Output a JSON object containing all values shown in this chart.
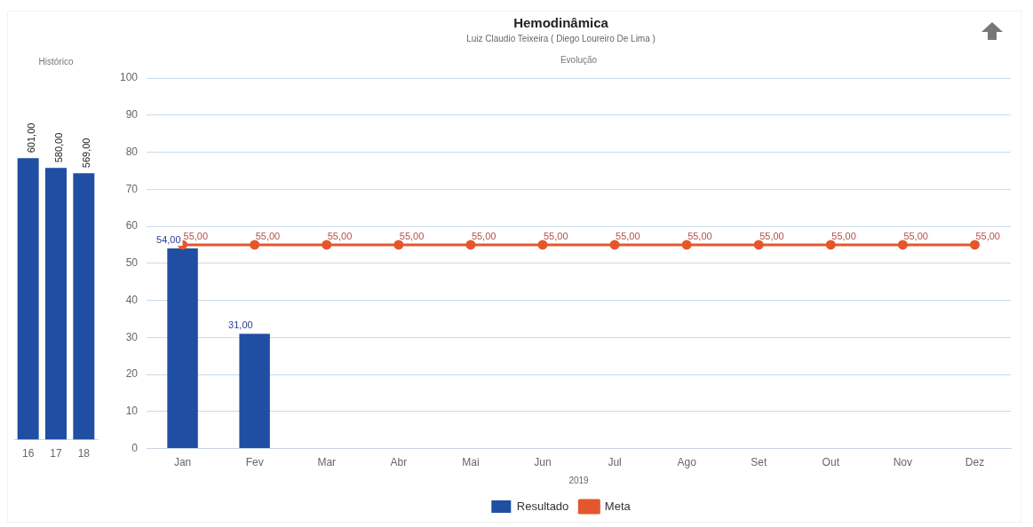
{
  "chart_data": [
    {
      "type": "bar",
      "title": "Histórico",
      "categories": [
        "16",
        "17",
        "18"
      ],
      "values": [
        601,
        580,
        569
      ],
      "value_labels": [
        "601,00",
        "580,00",
        "569,00"
      ],
      "color": "#1f4ea3",
      "tick_labels": "x",
      "grid": false,
      "legend": false
    },
    {
      "type": "bar",
      "title": "Hemodinâmica",
      "subtitle": "Luiz Claudio Teixeira ( Diego Loureiro De Lima )",
      "annotations": [
        "Evolução"
      ],
      "xlabel": "2019",
      "categories": [
        "Jan",
        "Fev",
        "Mar",
        "Abr",
        "Mai",
        "Jun",
        "Jul",
        "Ago",
        "Set",
        "Out",
        "Nov",
        "Dez"
      ],
      "series": [
        {
          "name": "Resultado",
          "type": "bar",
          "color": "#1f4ea3",
          "values": [
            54,
            31,
            null,
            null,
            null,
            null,
            null,
            null,
            null,
            null,
            null,
            null
          ],
          "value_labels": [
            "54,00",
            "31,00",
            null,
            null,
            null,
            null,
            null,
            null,
            null,
            null,
            null,
            null
          ]
        },
        {
          "name": "Meta",
          "type": "line",
          "color": "#e4572e",
          "marker": "circle",
          "values": [
            55,
            55,
            55,
            55,
            55,
            55,
            55,
            55,
            55,
            55,
            55,
            55
          ],
          "value_labels": [
            "55,00",
            "55,00",
            "55,00",
            "55,00",
            "55,00",
            "55,00",
            "55,00",
            "55,00",
            "55,00",
            "55,00",
            "55,00",
            "55,00"
          ]
        }
      ],
      "ylim": [
        0,
        100
      ],
      "yticks": [
        0,
        10,
        20,
        30,
        40,
        50,
        60,
        70,
        80,
        90,
        100
      ],
      "grid": "y",
      "legend": "bottom"
    }
  ]
}
